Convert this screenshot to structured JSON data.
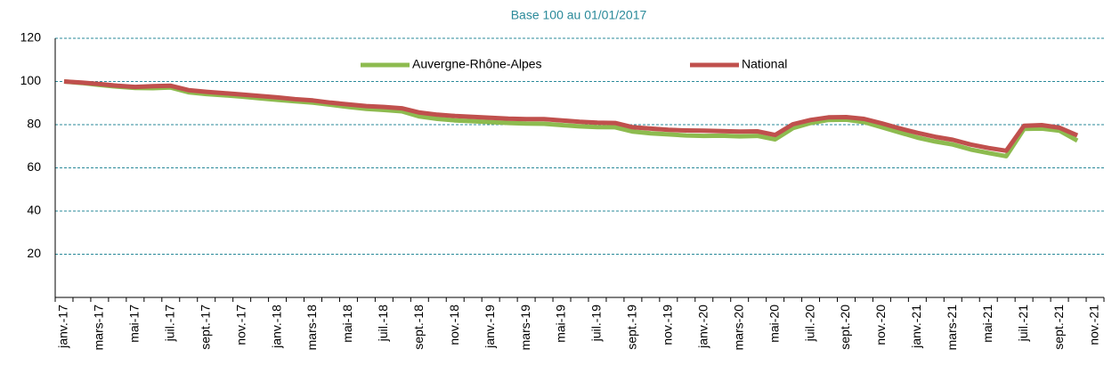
{
  "chart_data": {
    "type": "line",
    "title": "Base 100 au 01/01/2017",
    "categories": [
      "janv.-17",
      null,
      "mars-17",
      null,
      "mai-17",
      null,
      "juil.-17",
      null,
      "sept.-17",
      null,
      "nov.-17",
      null,
      "janv.-18",
      null,
      "mars-18",
      null,
      "mai-18",
      null,
      "juil.-18",
      null,
      "sept.-18",
      null,
      "nov.-18",
      null,
      "janv.-19",
      null,
      "mars-19",
      null,
      "mai-19",
      null,
      "juil.-19",
      null,
      "sept.-19",
      null,
      "nov.-19",
      null,
      "janv.-20",
      null,
      "mars-20",
      null,
      "mai-20",
      null,
      "juil.-20",
      null,
      "sept.-20",
      null,
      "nov.-20",
      null,
      "janv.-21",
      null,
      "mars-21",
      null,
      "mai-21",
      null,
      "juil.-21",
      null,
      "sept.-21",
      null,
      "nov.-21"
    ],
    "series": [
      {
        "name": "Auvergne-Rhône-Alpes",
        "color": "#8dbb4f",
        "values": [
          100,
          99.3,
          98.4,
          97.6,
          97,
          96.9,
          97.2,
          95,
          94.2,
          93.6,
          93,
          92.2,
          91.5,
          90.8,
          90.2,
          89.2,
          88.2,
          87.3,
          86.8,
          86.2,
          83.8,
          82.7,
          82,
          81.6,
          81.2,
          80.8,
          80.5,
          80.4,
          79.8,
          79.2,
          78.9,
          78.8,
          76.8,
          76,
          75.5,
          75,
          74.8,
          74.9,
          74.6,
          74.8,
          73.2,
          78.4,
          80.8,
          82.2,
          82.3,
          81.2,
          78.8,
          76.4,
          74,
          72.2,
          70.8,
          68.5,
          66.9,
          65.4,
          78,
          78.2,
          77.2,
          72.6,
          null
        ]
      },
      {
        "name": "National",
        "color": "#c0504d",
        "values": [
          100,
          99.5,
          98.8,
          98,
          97.5,
          97.8,
          98,
          96,
          95.2,
          94.6,
          94,
          93.3,
          92.6,
          91.8,
          91.2,
          90.2,
          89.4,
          88.6,
          88.2,
          87.6,
          85.6,
          84.6,
          84,
          83.6,
          83.2,
          82.8,
          82.6,
          82.6,
          82,
          81.3,
          80.9,
          80.8,
          78.8,
          78.2,
          77.6,
          77.3,
          77.2,
          77,
          76.8,
          76.9,
          75.2,
          80.2,
          82.2,
          83.4,
          83.5,
          82.7,
          80.6,
          78.3,
          76.2,
          74.4,
          73,
          70.8,
          69.2,
          67.9,
          79.5,
          79.8,
          78.6,
          75,
          null
        ]
      }
    ],
    "ylim": [
      0,
      120
    ],
    "yticks": [
      20,
      40,
      60,
      80,
      100,
      120
    ],
    "grid": true
  }
}
